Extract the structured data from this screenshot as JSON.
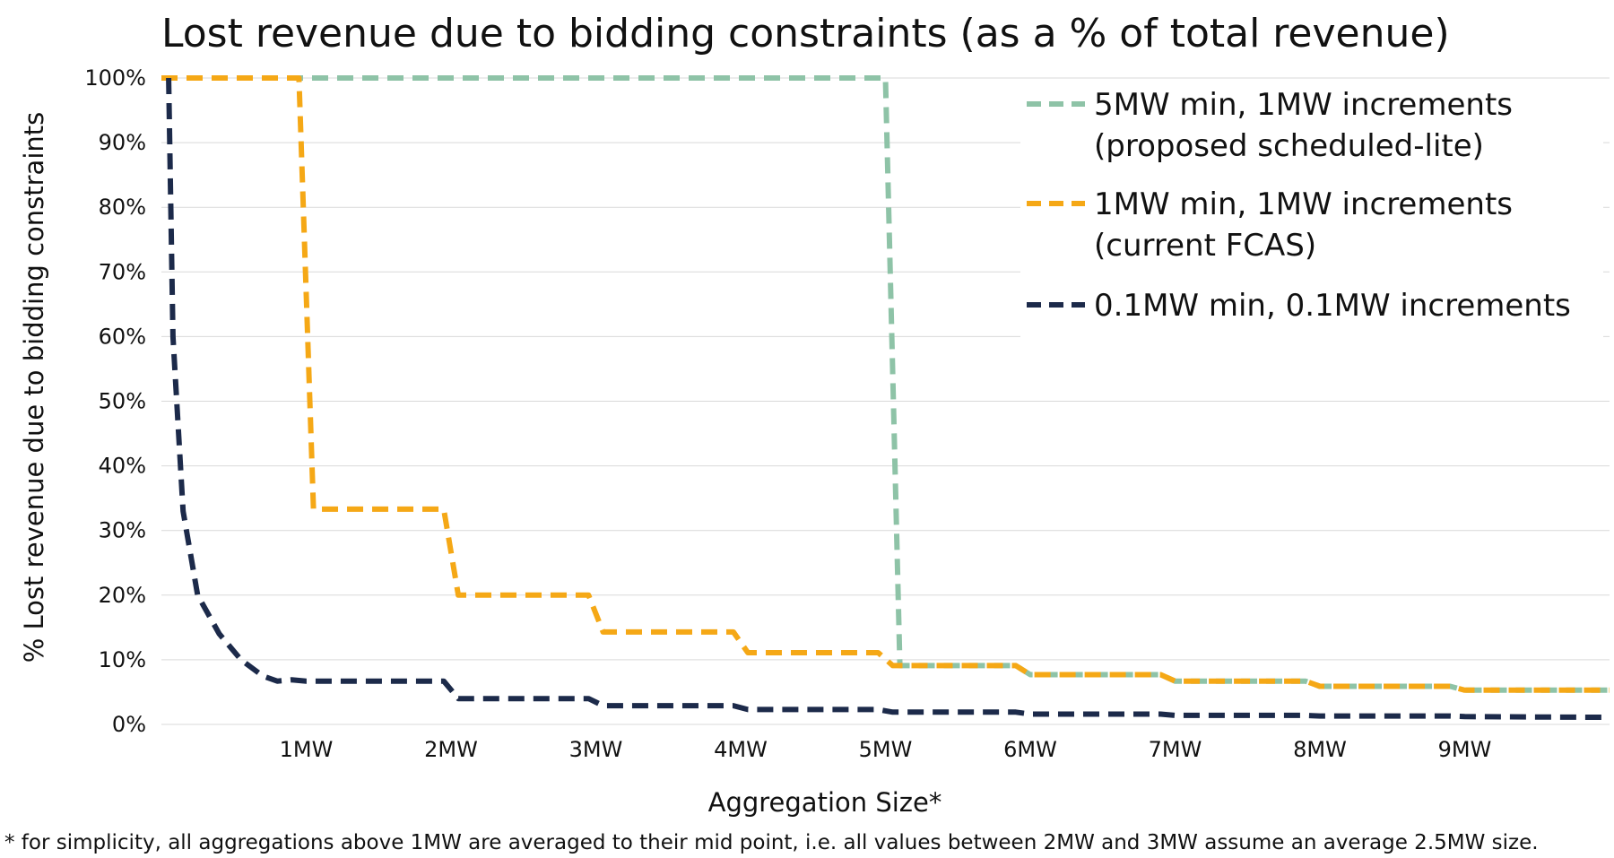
{
  "chart_data": {
    "type": "line",
    "title": "Lost revenue due to bidding constraints (as a % of total revenue)",
    "xlabel": "Aggregation Size*",
    "ylabel": "% Lost revenue due to bidding constraints",
    "footnote": "* for simplicity, all aggregations above 1MW are averaged to their mid point, i.e. all values  between 2MW and 3MW assume an average 2.5MW size.",
    "xlim": [
      0,
      10
    ],
    "ylim": [
      0,
      100
    ],
    "grid": true,
    "legend_position": "top-right",
    "x_ticks": [
      {
        "x": 1,
        "label": "1MW"
      },
      {
        "x": 2,
        "label": "2MW"
      },
      {
        "x": 3,
        "label": "3MW"
      },
      {
        "x": 4,
        "label": "4MW"
      },
      {
        "x": 5,
        "label": "5MW"
      },
      {
        "x": 6,
        "label": "6MW"
      },
      {
        "x": 7,
        "label": "7MW"
      },
      {
        "x": 8,
        "label": "8MW"
      },
      {
        "x": 9,
        "label": "9MW"
      }
    ],
    "y_ticks": [
      {
        "y": 0,
        "label": "0%"
      },
      {
        "y": 10,
        "label": "10%"
      },
      {
        "y": 20,
        "label": "20%"
      },
      {
        "y": 30,
        "label": "30%"
      },
      {
        "y": 40,
        "label": "40%"
      },
      {
        "y": 50,
        "label": "50%"
      },
      {
        "y": 60,
        "label": "60%"
      },
      {
        "y": 70,
        "label": "70%"
      },
      {
        "y": 80,
        "label": "80%"
      },
      {
        "y": 90,
        "label": "90%"
      },
      {
        "y": 100,
        "label": "100%"
      }
    ],
    "series": [
      {
        "name": "5MW min, 1MW increments (proposed scheduled-lite)",
        "legend_lines": [
          "5MW min, 1MW increments",
          "(proposed scheduled-lite)"
        ],
        "color": "#8ec3a7",
        "points": [
          [
            0,
            100
          ],
          [
            5,
            100
          ],
          [
            5.1,
            9.1
          ],
          [
            5.9,
            9.1
          ],
          [
            6,
            7.7
          ],
          [
            6.9,
            7.7
          ],
          [
            7,
            6.7
          ],
          [
            7.9,
            6.7
          ],
          [
            8,
            5.9
          ],
          [
            8.9,
            5.9
          ],
          [
            9,
            5.3
          ],
          [
            10,
            5.3
          ]
        ]
      },
      {
        "name": "1MW min, 1MW increments (current FCAS)",
        "legend_lines": [
          "1MW min, 1MW increments",
          "(current FCAS)"
        ],
        "color": "#f5a816",
        "points": [
          [
            0,
            100
          ],
          [
            0.95,
            100
          ],
          [
            1.05,
            33.3
          ],
          [
            1.95,
            33.3
          ],
          [
            2.05,
            20
          ],
          [
            2.95,
            20
          ],
          [
            3.05,
            14.3
          ],
          [
            3.95,
            14.3
          ],
          [
            4.05,
            11.1
          ],
          [
            4.95,
            11.1
          ],
          [
            5.05,
            9.1
          ],
          [
            5.9,
            9.1
          ],
          [
            6,
            7.7
          ],
          [
            6.9,
            7.7
          ],
          [
            7,
            6.7
          ],
          [
            7.9,
            6.7
          ],
          [
            8,
            5.9
          ],
          [
            8.9,
            5.9
          ],
          [
            9,
            5.3
          ],
          [
            10,
            5.3
          ]
        ]
      },
      {
        "name": "0.1MW min, 0.1MW increments",
        "legend_lines": [
          "0.1MW min, 0.1MW increments"
        ],
        "color": "#1c2a4a",
        "points": [
          [
            0.05,
            100
          ],
          [
            0.08,
            60
          ],
          [
            0.15,
            33
          ],
          [
            0.25,
            20
          ],
          [
            0.4,
            14
          ],
          [
            0.55,
            10
          ],
          [
            0.7,
            7.5
          ],
          [
            0.8,
            6.7
          ],
          [
            0.9,
            6.9
          ],
          [
            1,
            6.7
          ],
          [
            1.5,
            6.7
          ],
          [
            1.95,
            6.7
          ],
          [
            2.05,
            4
          ],
          [
            2.95,
            4
          ],
          [
            3.05,
            2.9
          ],
          [
            3.95,
            2.9
          ],
          [
            4.05,
            2.3
          ],
          [
            4.95,
            2.3
          ],
          [
            5.05,
            1.9
          ],
          [
            5.9,
            1.9
          ],
          [
            6,
            1.6
          ],
          [
            6.9,
            1.6
          ],
          [
            7,
            1.4
          ],
          [
            7.9,
            1.4
          ],
          [
            8,
            1.3
          ],
          [
            8.9,
            1.3
          ],
          [
            9,
            1.2
          ],
          [
            10,
            1.1
          ]
        ]
      }
    ]
  }
}
